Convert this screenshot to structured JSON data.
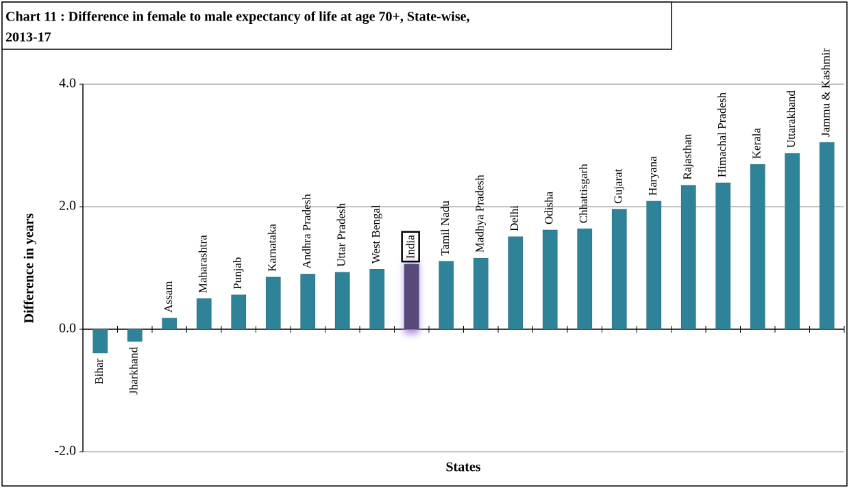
{
  "chart_data": {
    "type": "bar",
    "title": "Chart 11 : Difference in female to male expectancy of life at age 70+, State-wise,",
    "subtitle": "2013-17",
    "x_label": "States",
    "y_label": "Difference in years",
    "categories": [
      "Bihar",
      "Jharkhand",
      "Assam",
      "Maharashtra",
      "Punjab",
      "Karnataka",
      "Andhra Pradesh",
      "Uttar Pradesh",
      "West Bengal",
      "India",
      "Tamil Nadu",
      "Madhya Pradesh",
      "Delhi",
      "Odisha",
      "Chhattisgarh",
      "Gujarat",
      "Haryana",
      "Rajasthan",
      "Himachal Pradesh",
      "Kerala",
      "Uttarakhand",
      "Jammu & Kashmir"
    ],
    "values": [
      -0.39,
      -0.2,
      0.18,
      0.5,
      0.56,
      0.85,
      0.9,
      0.93,
      0.98,
      1.06,
      1.11,
      1.16,
      1.51,
      1.62,
      1.64,
      1.96,
      2.09,
      2.35,
      2.39,
      2.69,
      2.87,
      3.05
    ],
    "color": "#2f8399",
    "highlight_color": "#5a4878",
    "highlight_index": 9,
    "ylim": [
      -2,
      4
    ],
    "yticks": [
      {
        "value": -2,
        "label": "-2.0"
      },
      {
        "value": 0,
        "label": "0.0"
      },
      {
        "value": 2,
        "label": "2.0"
      },
      {
        "value": 4,
        "label": "4.0"
      }
    ],
    "grid": true
  }
}
